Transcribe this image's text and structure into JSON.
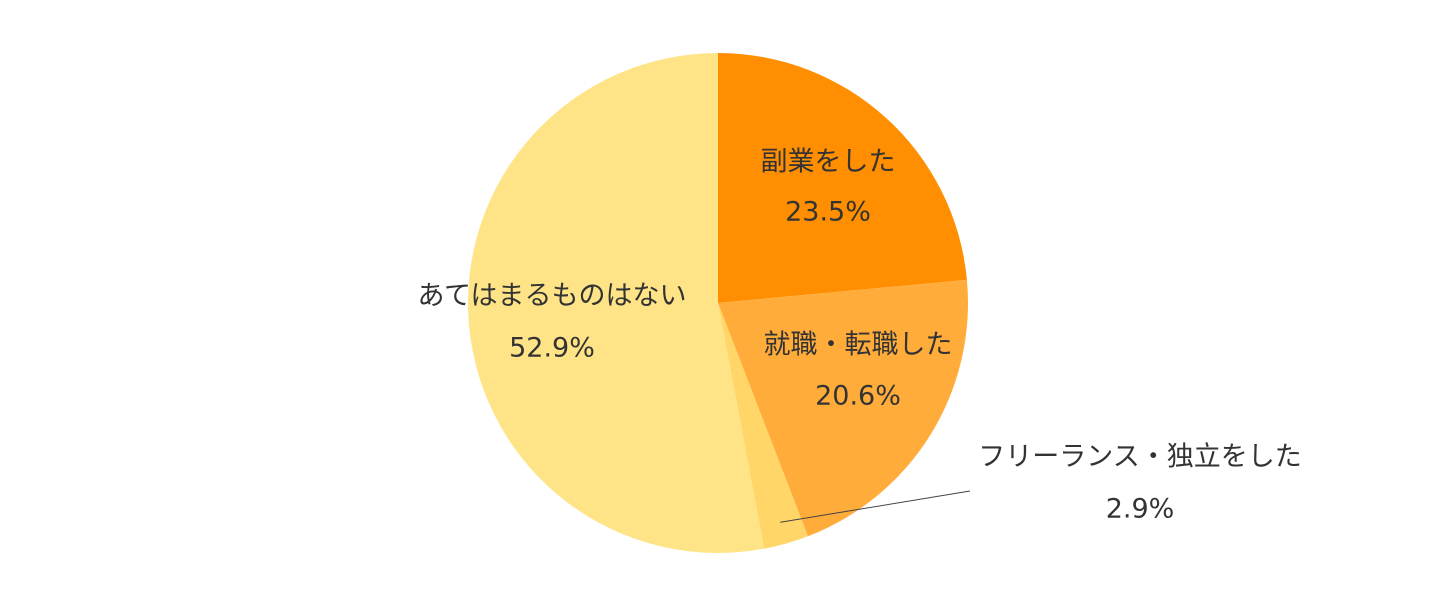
{
  "chart_data": {
    "type": "pie",
    "start_angle_deg": 0,
    "direction": "clockwise",
    "slices": [
      {
        "label": "副業をした",
        "value": 23.5,
        "value_text": "23.5%",
        "color": "#FF8F00"
      },
      {
        "label": "就職・転職した",
        "value": 20.6,
        "value_text": "20.6%",
        "color": "#FFAC3A"
      },
      {
        "label": "フリーランス・独立をした",
        "value": 2.9,
        "value_text": "2.9%",
        "color": "#FFD667"
      },
      {
        "label": "あてはまるものはない",
        "value": 52.9,
        "value_text": "52.9%",
        "color": "#FFE487"
      }
    ],
    "legend": "none"
  }
}
